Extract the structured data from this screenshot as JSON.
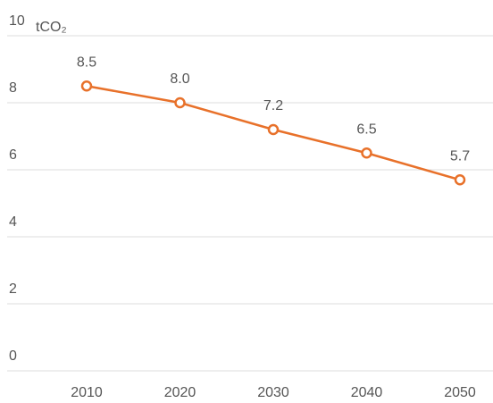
{
  "chart_data": {
    "type": "line",
    "y_unit": "tCO₂",
    "categories": [
      "2010",
      "2020",
      "2030",
      "2040",
      "2050"
    ],
    "values": [
      8.5,
      8.0,
      7.2,
      6.5,
      5.7
    ],
    "value_labels": [
      "8.5",
      "8.0",
      "7.2",
      "6.5",
      "5.7"
    ],
    "color": "#e8712a",
    "ylim": [
      0,
      10
    ],
    "yticks": [
      0,
      2,
      4,
      6,
      8,
      10
    ],
    "grid": true
  }
}
